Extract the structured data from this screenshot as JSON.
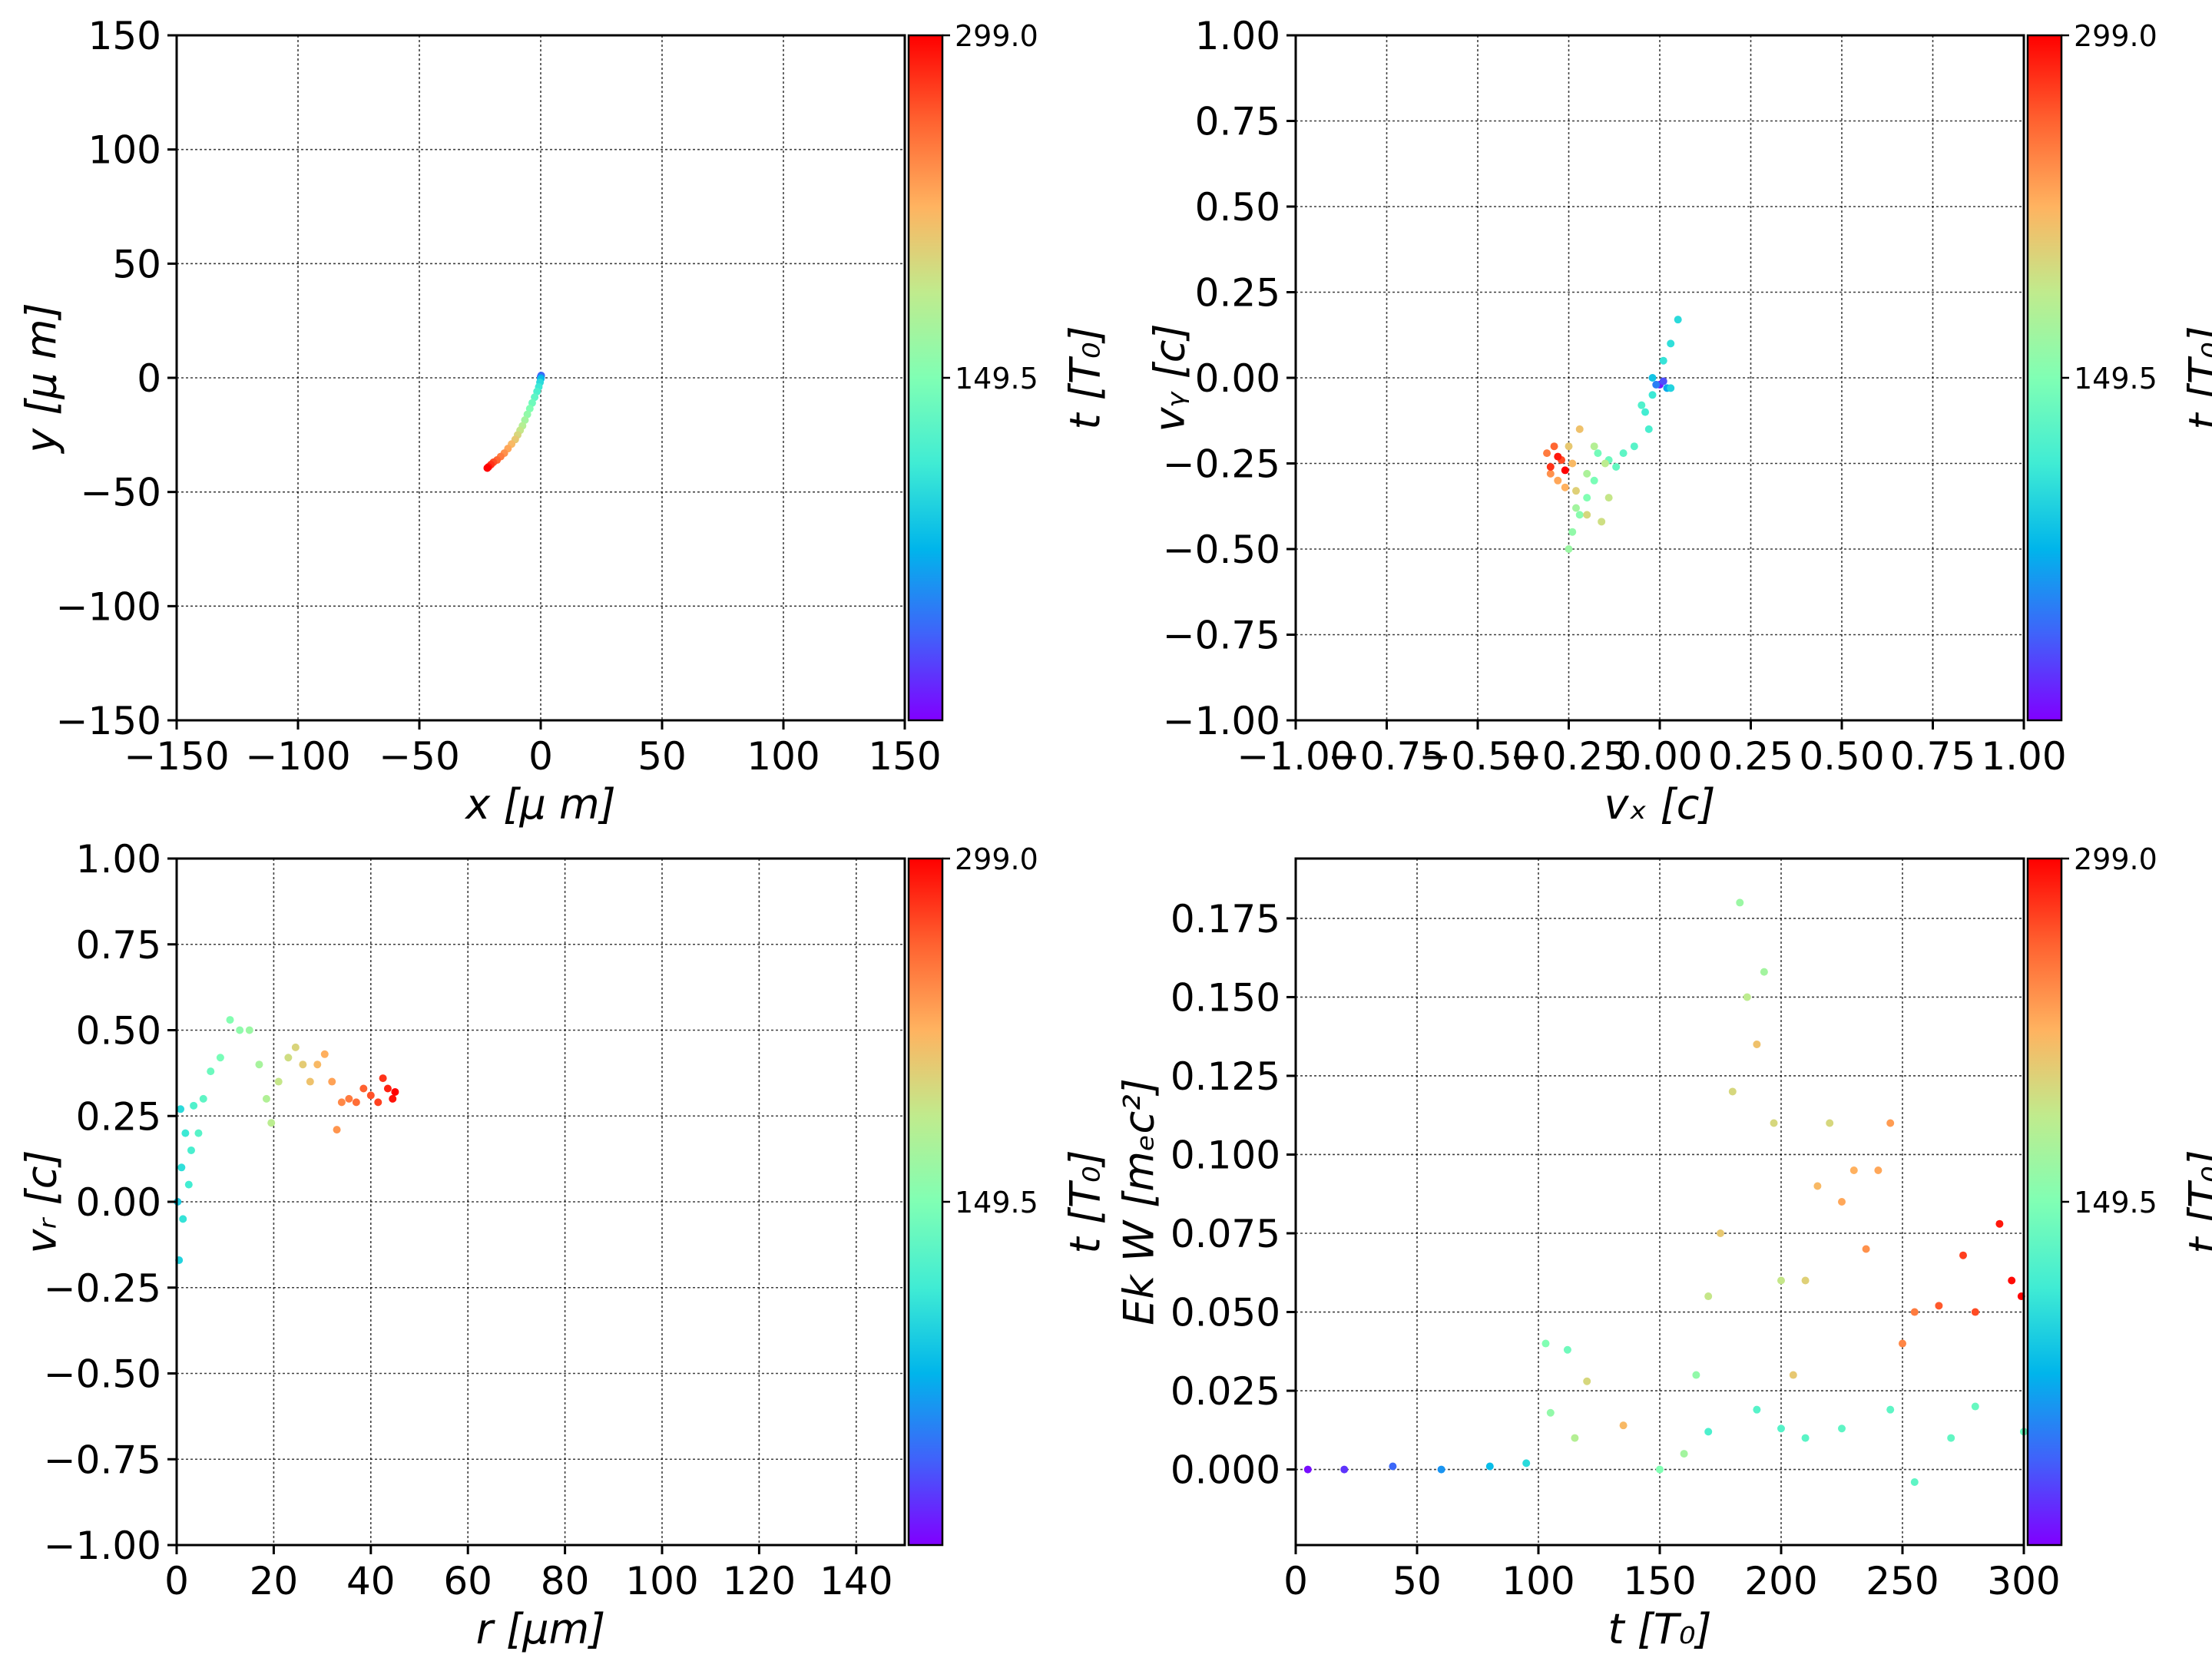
{
  "colormap": [
    "#8000ff",
    "#4062fa",
    "#00b5eb",
    "#40ecd4",
    "#80ffb4",
    "#c0eb8d",
    "#ffb360",
    "#ff6230",
    "#ff0000"
  ],
  "colorbar": {
    "label": "t [T₀]",
    "min": 0,
    "max": 299,
    "ticks": [
      {
        "value": 149.5,
        "label": "149.5"
      },
      {
        "value": 299,
        "label": "299.0"
      }
    ]
  },
  "chart_data": [
    {
      "id": "xy",
      "type": "scatter",
      "xlabel": "x  [μ m]",
      "ylabel": "y  [μ m]",
      "xlim": [
        -150,
        150
      ],
      "ylim": [
        -150,
        150
      ],
      "xticks": [
        {
          "v": -150,
          "t": "−150"
        },
        {
          "v": -100,
          "t": "−100"
        },
        {
          "v": -50,
          "t": "−50"
        },
        {
          "v": 0,
          "t": "0"
        },
        {
          "v": 50,
          "t": "50"
        },
        {
          "v": 100,
          "t": "100"
        },
        {
          "v": 150,
          "t": "150"
        }
      ],
      "yticks": [
        {
          "v": 150,
          "t": "150"
        },
        {
          "v": 100,
          "t": "100"
        },
        {
          "v": 50,
          "t": "50"
        },
        {
          "v": 0,
          "t": "0"
        },
        {
          "v": -50,
          "t": "−50"
        },
        {
          "v": -100,
          "t": "−100"
        },
        {
          "v": -150,
          "t": "−150"
        }
      ],
      "grid": true,
      "points": [
        {
          "x": 0.0,
          "y": 0.0,
          "t": 0
        },
        {
          "x": 0.0,
          "y": 0.5,
          "t": 20
        },
        {
          "x": 0.2,
          "y": 1.0,
          "t": 40
        },
        {
          "x": 0.1,
          "y": 0.0,
          "t": 60
        },
        {
          "x": 0.0,
          "y": -0.5,
          "t": 80
        },
        {
          "x": -0.3,
          "y": -2.0,
          "t": 100
        },
        {
          "x": -0.8,
          "y": -4.0,
          "t": 110
        },
        {
          "x": -1.5,
          "y": -6.0,
          "t": 120
        },
        {
          "x": -2.5,
          "y": -8.5,
          "t": 130
        },
        {
          "x": -3.5,
          "y": -11.0,
          "t": 140
        },
        {
          "x": -4.5,
          "y": -13.5,
          "t": 150
        },
        {
          "x": -5.5,
          "y": -16.0,
          "t": 160
        },
        {
          "x": -6.5,
          "y": -18.5,
          "t": 170
        },
        {
          "x": -7.5,
          "y": -21.0,
          "t": 180
        },
        {
          "x": -8.5,
          "y": -23.0,
          "t": 190
        },
        {
          "x": -9.5,
          "y": -25.0,
          "t": 200
        },
        {
          "x": -10.5,
          "y": -27.0,
          "t": 210
        },
        {
          "x": -12.0,
          "y": -29.0,
          "t": 220
        },
        {
          "x": -13.5,
          "y": -31.0,
          "t": 230
        },
        {
          "x": -15.0,
          "y": -33.0,
          "t": 240
        },
        {
          "x": -16.5,
          "y": -34.5,
          "t": 250
        },
        {
          "x": -18.0,
          "y": -36.0,
          "t": 260
        },
        {
          "x": -19.5,
          "y": -37.0,
          "t": 270
        },
        {
          "x": -20.5,
          "y": -38.0,
          "t": 280
        },
        {
          "x": -21.5,
          "y": -39.0,
          "t": 290
        },
        {
          "x": -22.0,
          "y": -39.5,
          "t": 299
        }
      ]
    },
    {
      "id": "vxvy",
      "type": "scatter",
      "xlabel": "vₓ [c]",
      "ylabel": "vᵧ [c]",
      "xlim": [
        -1,
        1
      ],
      "ylim": [
        -1,
        1
      ],
      "xticks": [
        {
          "v": -1,
          "t": "−1.00"
        },
        {
          "v": -0.75,
          "t": "−0.75"
        },
        {
          "v": -0.5,
          "t": "−0.50"
        },
        {
          "v": -0.25,
          "t": "−0.25"
        },
        {
          "v": 0,
          "t": "0.00"
        },
        {
          "v": 0.25,
          "t": "0.25"
        },
        {
          "v": 0.5,
          "t": "0.50"
        },
        {
          "v": 0.75,
          "t": "0.75"
        },
        {
          "v": 1,
          "t": "1.00"
        }
      ],
      "yticks": [
        {
          "v": 1,
          "t": "1.00"
        },
        {
          "v": 0.75,
          "t": "0.75"
        },
        {
          "v": 0.5,
          "t": "0.50"
        },
        {
          "v": 0.25,
          "t": "0.25"
        },
        {
          "v": 0,
          "t": "0.00"
        },
        {
          "v": -0.25,
          "t": "−0.25"
        },
        {
          "v": -0.5,
          "t": "−0.50"
        },
        {
          "v": -0.75,
          "t": "−0.75"
        },
        {
          "v": -1,
          "t": "−1.00"
        }
      ],
      "grid": true,
      "points": [
        {
          "x": 0.0,
          "y": -0.02,
          "t": 10
        },
        {
          "x": 0.01,
          "y": -0.01,
          "t": 30
        },
        {
          "x": -0.01,
          "y": -0.02,
          "t": 50
        },
        {
          "x": 0.02,
          "y": -0.03,
          "t": 70
        },
        {
          "x": -0.02,
          "y": 0.0,
          "t": 85
        },
        {
          "x": 0.03,
          "y": -0.03,
          "t": 95
        },
        {
          "x": 0.05,
          "y": 0.17,
          "t": 100
        },
        {
          "x": 0.03,
          "y": 0.1,
          "t": 103
        },
        {
          "x": 0.01,
          "y": 0.05,
          "t": 106
        },
        {
          "x": -0.02,
          "y": -0.05,
          "t": 110
        },
        {
          "x": -0.04,
          "y": -0.1,
          "t": 114
        },
        {
          "x": -0.03,
          "y": -0.15,
          "t": 118
        },
        {
          "x": -0.05,
          "y": -0.08,
          "t": 122
        },
        {
          "x": -0.07,
          "y": -0.2,
          "t": 126
        },
        {
          "x": -0.1,
          "y": -0.22,
          "t": 130
        },
        {
          "x": -0.12,
          "y": -0.26,
          "t": 134
        },
        {
          "x": -0.14,
          "y": -0.24,
          "t": 138
        },
        {
          "x": -0.17,
          "y": -0.22,
          "t": 142
        },
        {
          "x": -0.18,
          "y": -0.3,
          "t": 146
        },
        {
          "x": -0.2,
          "y": -0.35,
          "t": 150
        },
        {
          "x": -0.22,
          "y": -0.4,
          "t": 155
        },
        {
          "x": -0.24,
          "y": -0.45,
          "t": 160
        },
        {
          "x": -0.25,
          "y": -0.5,
          "t": 165
        },
        {
          "x": -0.23,
          "y": -0.38,
          "t": 170
        },
        {
          "x": -0.2,
          "y": -0.28,
          "t": 175
        },
        {
          "x": -0.18,
          "y": -0.2,
          "t": 180
        },
        {
          "x": -0.15,
          "y": -0.25,
          "t": 185
        },
        {
          "x": -0.14,
          "y": -0.35,
          "t": 190
        },
        {
          "x": -0.16,
          "y": -0.42,
          "t": 195
        },
        {
          "x": -0.2,
          "y": -0.4,
          "t": 200
        },
        {
          "x": -0.23,
          "y": -0.33,
          "t": 205
        },
        {
          "x": -0.25,
          "y": -0.2,
          "t": 210
        },
        {
          "x": -0.22,
          "y": -0.15,
          "t": 215
        },
        {
          "x": -0.24,
          "y": -0.25,
          "t": 220
        },
        {
          "x": -0.26,
          "y": -0.32,
          "t": 225
        },
        {
          "x": -0.28,
          "y": -0.3,
          "t": 230
        },
        {
          "x": -0.3,
          "y": -0.28,
          "t": 240
        },
        {
          "x": -0.31,
          "y": -0.22,
          "t": 250
        },
        {
          "x": -0.29,
          "y": -0.2,
          "t": 260
        },
        {
          "x": -0.27,
          "y": -0.24,
          "t": 270
        },
        {
          "x": -0.3,
          "y": -0.26,
          "t": 280
        },
        {
          "x": -0.28,
          "y": -0.23,
          "t": 290
        },
        {
          "x": -0.26,
          "y": -0.27,
          "t": 299
        }
      ]
    },
    {
      "id": "rvr",
      "type": "scatter",
      "xlabel": "r [μm]",
      "ylabel": "vᵣ [c]",
      "xlim": [
        0,
        150
      ],
      "ylim": [
        -1,
        1
      ],
      "xticks": [
        {
          "v": 0,
          "t": "0"
        },
        {
          "v": 20,
          "t": "20"
        },
        {
          "v": 40,
          "t": "40"
        },
        {
          "v": 60,
          "t": "60"
        },
        {
          "v": 80,
          "t": "80"
        },
        {
          "v": 100,
          "t": "100"
        },
        {
          "v": 120,
          "t": "120"
        },
        {
          "v": 140,
          "t": "140"
        }
      ],
      "yticks": [
        {
          "v": 1,
          "t": "1.00"
        },
        {
          "v": 0.75,
          "t": "0.75"
        },
        {
          "v": 0.5,
          "t": "0.50"
        },
        {
          "v": 0.25,
          "t": "0.25"
        },
        {
          "v": 0,
          "t": "0.00"
        },
        {
          "v": -0.25,
          "t": "−0.25"
        },
        {
          "v": -0.5,
          "t": "−0.50"
        },
        {
          "v": -0.75,
          "t": "−0.75"
        },
        {
          "v": -1,
          "t": "−1.00"
        }
      ],
      "grid": true,
      "points": [
        {
          "x": 0.2,
          "y": 0.0,
          "t": 90
        },
        {
          "x": 0.5,
          "y": -0.17,
          "t": 95
        },
        {
          "x": 0.8,
          "y": 0.27,
          "t": 100
        },
        {
          "x": 1.0,
          "y": 0.1,
          "t": 103
        },
        {
          "x": 1.3,
          "y": -0.05,
          "t": 106
        },
        {
          "x": 1.8,
          "y": 0.2,
          "t": 110
        },
        {
          "x": 2.5,
          "y": 0.05,
          "t": 114
        },
        {
          "x": 3.0,
          "y": 0.15,
          "t": 118
        },
        {
          "x": 3.5,
          "y": 0.28,
          "t": 122
        },
        {
          "x": 4.5,
          "y": 0.2,
          "t": 126
        },
        {
          "x": 5.5,
          "y": 0.3,
          "t": 130
        },
        {
          "x": 7.0,
          "y": 0.38,
          "t": 138
        },
        {
          "x": 9.0,
          "y": 0.42,
          "t": 145
        },
        {
          "x": 11.0,
          "y": 0.53,
          "t": 152
        },
        {
          "x": 13.0,
          "y": 0.5,
          "t": 158
        },
        {
          "x": 15.0,
          "y": 0.5,
          "t": 165
        },
        {
          "x": 17.0,
          "y": 0.4,
          "t": 172
        },
        {
          "x": 18.5,
          "y": 0.3,
          "t": 178
        },
        {
          "x": 19.5,
          "y": 0.23,
          "t": 184
        },
        {
          "x": 21.0,
          "y": 0.35,
          "t": 190
        },
        {
          "x": 23.0,
          "y": 0.42,
          "t": 196
        },
        {
          "x": 24.5,
          "y": 0.45,
          "t": 202
        },
        {
          "x": 26.0,
          "y": 0.4,
          "t": 208
        },
        {
          "x": 27.5,
          "y": 0.35,
          "t": 214
        },
        {
          "x": 29.0,
          "y": 0.4,
          "t": 220
        },
        {
          "x": 30.5,
          "y": 0.43,
          "t": 226
        },
        {
          "x": 32.0,
          "y": 0.35,
          "t": 232
        },
        {
          "x": 33.0,
          "y": 0.21,
          "t": 238
        },
        {
          "x": 34.0,
          "y": 0.29,
          "t": 244
        },
        {
          "x": 35.5,
          "y": 0.3,
          "t": 250
        },
        {
          "x": 37.0,
          "y": 0.29,
          "t": 256
        },
        {
          "x": 38.5,
          "y": 0.33,
          "t": 262
        },
        {
          "x": 40.0,
          "y": 0.31,
          "t": 268
        },
        {
          "x": 41.5,
          "y": 0.29,
          "t": 274
        },
        {
          "x": 42.5,
          "y": 0.36,
          "t": 280
        },
        {
          "x": 43.5,
          "y": 0.33,
          "t": 286
        },
        {
          "x": 44.5,
          "y": 0.3,
          "t": 292
        },
        {
          "x": 45.0,
          "y": 0.32,
          "t": 299
        }
      ]
    },
    {
      "id": "ekt",
      "type": "scatter",
      "xlabel": "t [T₀]",
      "ylabel": "Ek W [mₑc²]",
      "xlim": [
        0,
        300
      ],
      "ylim": [
        -0.024,
        0.194
      ],
      "xticks": [
        {
          "v": 0,
          "t": "0"
        },
        {
          "v": 50,
          "t": "50"
        },
        {
          "v": 100,
          "t": "100"
        },
        {
          "v": 150,
          "t": "150"
        },
        {
          "v": 200,
          "t": "200"
        },
        {
          "v": 250,
          "t": "250"
        },
        {
          "v": 300,
          "t": "300"
        }
      ],
      "yticks": [
        {
          "v": 0.175,
          "t": "0.175"
        },
        {
          "v": 0.15,
          "t": "0.150"
        },
        {
          "v": 0.125,
          "t": "0.125"
        },
        {
          "v": 0.1,
          "t": "0.100"
        },
        {
          "v": 0.075,
          "t": "0.075"
        },
        {
          "v": 0.05,
          "t": "0.050"
        },
        {
          "v": 0.025,
          "t": "0.025"
        },
        {
          "v": 0,
          "t": "0.000"
        }
      ],
      "grid": true,
      "points": [
        {
          "x": 5,
          "y": 0.0,
          "t": 5
        },
        {
          "x": 20,
          "y": 0.0,
          "t": 20
        },
        {
          "x": 40,
          "y": 0.001,
          "t": 40
        },
        {
          "x": 60,
          "y": 0.0,
          "t": 60
        },
        {
          "x": 80,
          "y": 0.001,
          "t": 80
        },
        {
          "x": 95,
          "y": 0.002,
          "t": 100
        },
        {
          "x": 103,
          "y": 0.04,
          "t": 150
        },
        {
          "x": 105,
          "y": 0.018,
          "t": 160
        },
        {
          "x": 112,
          "y": 0.038,
          "t": 140
        },
        {
          "x": 115,
          "y": 0.01,
          "t": 180
        },
        {
          "x": 120,
          "y": 0.028,
          "t": 200
        },
        {
          "x": 135,
          "y": 0.014,
          "t": 220
        },
        {
          "x": 150,
          "y": 0.0,
          "t": 150
        },
        {
          "x": 160,
          "y": 0.005,
          "t": 170
        },
        {
          "x": 165,
          "y": 0.03,
          "t": 160
        },
        {
          "x": 170,
          "y": 0.055,
          "t": 190
        },
        {
          "x": 175,
          "y": 0.075,
          "t": 210
        },
        {
          "x": 180,
          "y": 0.12,
          "t": 200
        },
        {
          "x": 183,
          "y": 0.18,
          "t": 165
        },
        {
          "x": 186,
          "y": 0.15,
          "t": 185
        },
        {
          "x": 190,
          "y": 0.135,
          "t": 215
        },
        {
          "x": 193,
          "y": 0.158,
          "t": 170
        },
        {
          "x": 197,
          "y": 0.11,
          "t": 200
        },
        {
          "x": 200,
          "y": 0.06,
          "t": 190
        },
        {
          "x": 205,
          "y": 0.03,
          "t": 210
        },
        {
          "x": 210,
          "y": 0.06,
          "t": 205
        },
        {
          "x": 215,
          "y": 0.09,
          "t": 220
        },
        {
          "x": 220,
          "y": 0.11,
          "t": 200
        },
        {
          "x": 225,
          "y": 0.085,
          "t": 230
        },
        {
          "x": 230,
          "y": 0.095,
          "t": 225
        },
        {
          "x": 235,
          "y": 0.07,
          "t": 240
        },
        {
          "x": 240,
          "y": 0.095,
          "t": 230
        },
        {
          "x": 245,
          "y": 0.11,
          "t": 235
        },
        {
          "x": 250,
          "y": 0.04,
          "t": 245
        },
        {
          "x": 255,
          "y": 0.05,
          "t": 250
        },
        {
          "x": 265,
          "y": 0.052,
          "t": 265
        },
        {
          "x": 275,
          "y": 0.068,
          "t": 275
        },
        {
          "x": 280,
          "y": 0.05,
          "t": 270
        },
        {
          "x": 290,
          "y": 0.078,
          "t": 290
        },
        {
          "x": 295,
          "y": 0.06,
          "t": 295
        },
        {
          "x": 299,
          "y": 0.055,
          "t": 299
        },
        {
          "x": 170,
          "y": 0.012,
          "t": 120
        },
        {
          "x": 190,
          "y": 0.019,
          "t": 125
        },
        {
          "x": 200,
          "y": 0.013,
          "t": 125
        },
        {
          "x": 210,
          "y": 0.01,
          "t": 128
        },
        {
          "x": 225,
          "y": 0.013,
          "t": 130
        },
        {
          "x": 245,
          "y": 0.019,
          "t": 130
        },
        {
          "x": 255,
          "y": -0.004,
          "t": 130
        },
        {
          "x": 270,
          "y": 0.01,
          "t": 132
        },
        {
          "x": 280,
          "y": 0.02,
          "t": 135
        },
        {
          "x": 300,
          "y": 0.012,
          "t": 135
        }
      ]
    }
  ]
}
